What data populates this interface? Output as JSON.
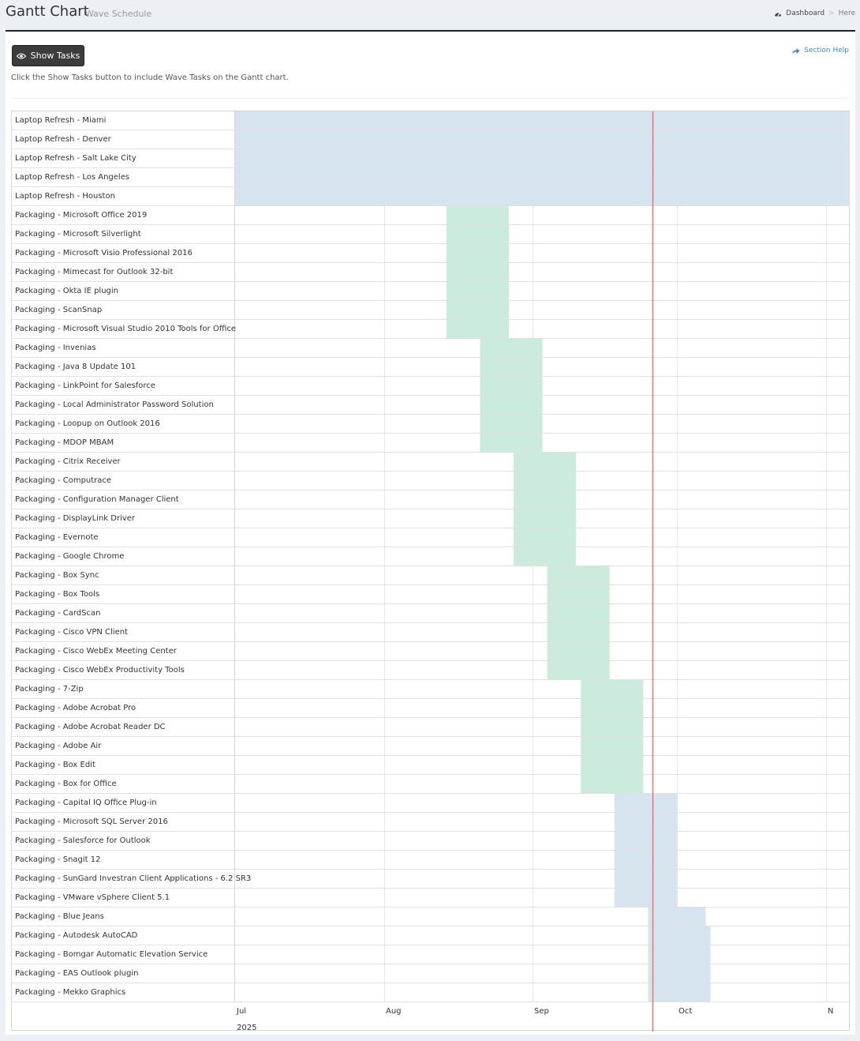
{
  "header": {
    "title": "Gantt Chart",
    "subtitle": "Wave Schedule",
    "breadcrumb": {
      "dashboard": "Dashboard",
      "separator": ">",
      "current": "Here"
    }
  },
  "toolbar": {
    "show_tasks_label": "Show Tasks",
    "section_help_label": "Section Help",
    "help_text": "Click the Show Tasks button to include Wave Tasks on the Gantt chart."
  },
  "colors": {
    "laptop_bar": "#d6e4ef",
    "packaging_green": "#cbebdc",
    "packaging_blue": "#d6e4ef",
    "today_line": "#e8675c",
    "grid": "#e6e6e6"
  },
  "icons": {
    "eye": "eye-icon",
    "share": "share-icon",
    "dashboard": "dashboard-icon"
  },
  "chart_data": {
    "type": "gantt",
    "x_axis": {
      "tick_labels": [
        "Jul",
        "Aug",
        "Sep",
        "Oct",
        "N"
      ],
      "tick_dates": [
        "2025-07-01",
        "2025-08-01",
        "2025-09-01",
        "2025-10-01",
        "2025-11-01"
      ],
      "year_label": "2025",
      "range": [
        "2025-07-01",
        "2025-11-06"
      ]
    },
    "today": "2025-09-26",
    "tasks": [
      {
        "name": "Laptop Refresh - Miami",
        "start": "2025-07-01",
        "end": "2025-11-06",
        "color": "laptop_bar"
      },
      {
        "name": "Laptop Refresh - Denver",
        "start": "2025-07-01",
        "end": "2025-11-06",
        "color": "laptop_bar"
      },
      {
        "name": "Laptop Refresh - Salt Lake City",
        "start": "2025-07-01",
        "end": "2025-11-06",
        "color": "laptop_bar"
      },
      {
        "name": "Laptop Refresh - Los Angeles",
        "start": "2025-07-01",
        "end": "2025-11-06",
        "color": "laptop_bar"
      },
      {
        "name": "Laptop Refresh - Houston",
        "start": "2025-07-01",
        "end": "2025-11-06",
        "color": "laptop_bar"
      },
      {
        "name": "Packaging - Microsoft Office 2019",
        "start": "2025-08-14",
        "end": "2025-08-27",
        "color": "packaging_green"
      },
      {
        "name": "Packaging - Microsoft Silverlight",
        "start": "2025-08-14",
        "end": "2025-08-27",
        "color": "packaging_green"
      },
      {
        "name": "Packaging - Microsoft Visio Professional 2016",
        "start": "2025-08-14",
        "end": "2025-08-27",
        "color": "packaging_green"
      },
      {
        "name": "Packaging - Mimecast for Outlook 32-bit",
        "start": "2025-08-14",
        "end": "2025-08-27",
        "color": "packaging_green"
      },
      {
        "name": "Packaging - Okta IE plugin",
        "start": "2025-08-14",
        "end": "2025-08-27",
        "color": "packaging_green"
      },
      {
        "name": "Packaging - ScanSnap",
        "start": "2025-08-14",
        "end": "2025-08-27",
        "color": "packaging_green"
      },
      {
        "name": "Packaging - Microsoft Visual Studio 2010 Tools for Office",
        "start": "2025-08-14",
        "end": "2025-08-27",
        "color": "packaging_green"
      },
      {
        "name": "Packaging - Invenias",
        "start": "2025-08-21",
        "end": "2025-09-03",
        "color": "packaging_green"
      },
      {
        "name": "Packaging - Java 8 Update 101",
        "start": "2025-08-21",
        "end": "2025-09-03",
        "color": "packaging_green"
      },
      {
        "name": "Packaging - LinkPoint for Salesforce",
        "start": "2025-08-21",
        "end": "2025-09-03",
        "color": "packaging_green"
      },
      {
        "name": "Packaging - Local Administrator Password Solution",
        "start": "2025-08-21",
        "end": "2025-09-03",
        "color": "packaging_green"
      },
      {
        "name": "Packaging - Loopup on Outlook 2016",
        "start": "2025-08-21",
        "end": "2025-09-03",
        "color": "packaging_green"
      },
      {
        "name": "Packaging - MDOP MBAM",
        "start": "2025-08-21",
        "end": "2025-09-03",
        "color": "packaging_green"
      },
      {
        "name": "Packaging - Citrix Receiver",
        "start": "2025-08-28",
        "end": "2025-09-10",
        "color": "packaging_green"
      },
      {
        "name": "Packaging - Computrace",
        "start": "2025-08-28",
        "end": "2025-09-10",
        "color": "packaging_green"
      },
      {
        "name": "Packaging - Configuration Manager Client",
        "start": "2025-08-28",
        "end": "2025-09-10",
        "color": "packaging_green"
      },
      {
        "name": "Packaging - DisplayLink Driver",
        "start": "2025-08-28",
        "end": "2025-09-10",
        "color": "packaging_green"
      },
      {
        "name": "Packaging - Evernote",
        "start": "2025-08-28",
        "end": "2025-09-10",
        "color": "packaging_green"
      },
      {
        "name": "Packaging - Google Chrome",
        "start": "2025-08-28",
        "end": "2025-09-10",
        "color": "packaging_green"
      },
      {
        "name": "Packaging - Box Sync",
        "start": "2025-09-04",
        "end": "2025-09-17",
        "color": "packaging_green"
      },
      {
        "name": "Packaging - Box Tools",
        "start": "2025-09-04",
        "end": "2025-09-17",
        "color": "packaging_green"
      },
      {
        "name": "Packaging - CardScan",
        "start": "2025-09-04",
        "end": "2025-09-17",
        "color": "packaging_green"
      },
      {
        "name": "Packaging - Cisco VPN Client",
        "start": "2025-09-04",
        "end": "2025-09-17",
        "color": "packaging_green"
      },
      {
        "name": "Packaging - Cisco WebEx Meeting Center",
        "start": "2025-09-04",
        "end": "2025-09-17",
        "color": "packaging_green"
      },
      {
        "name": "Packaging - Cisco WebEx Productivity Tools",
        "start": "2025-09-04",
        "end": "2025-09-17",
        "color": "packaging_green"
      },
      {
        "name": "Packaging - 7-Zip",
        "start": "2025-09-11",
        "end": "2025-09-24",
        "color": "packaging_green"
      },
      {
        "name": "Packaging - Adobe Acrobat Pro",
        "start": "2025-09-11",
        "end": "2025-09-24",
        "color": "packaging_green"
      },
      {
        "name": "Packaging - Adobe Acrobat Reader DC",
        "start": "2025-09-11",
        "end": "2025-09-24",
        "color": "packaging_green"
      },
      {
        "name": "Packaging - Adobe Air",
        "start": "2025-09-11",
        "end": "2025-09-24",
        "color": "packaging_green"
      },
      {
        "name": "Packaging - Box Edit",
        "start": "2025-09-11",
        "end": "2025-09-24",
        "color": "packaging_green"
      },
      {
        "name": "Packaging - Box for Office",
        "start": "2025-09-11",
        "end": "2025-09-24",
        "color": "packaging_green"
      },
      {
        "name": "Packaging - Capital IQ Office Plug-in",
        "start": "2025-09-18",
        "end": "2025-10-01",
        "color": "packaging_blue"
      },
      {
        "name": "Packaging - Microsoft SQL Server 2016",
        "start": "2025-09-18",
        "end": "2025-10-01",
        "color": "packaging_blue"
      },
      {
        "name": "Packaging - Salesforce for Outlook",
        "start": "2025-09-18",
        "end": "2025-10-01",
        "color": "packaging_blue"
      },
      {
        "name": "Packaging - Snagit 12",
        "start": "2025-09-18",
        "end": "2025-10-01",
        "color": "packaging_blue"
      },
      {
        "name": "Packaging - SunGard Investran Client Applications - 6.2 SR3",
        "start": "2025-09-18",
        "end": "2025-10-01",
        "color": "packaging_blue"
      },
      {
        "name": "Packaging - VMware vSphere Client 5.1",
        "start": "2025-09-18",
        "end": "2025-10-01",
        "color": "packaging_blue"
      },
      {
        "name": "Packaging - Blue Jeans",
        "start": "2025-09-25",
        "end": "2025-10-07",
        "color": "packaging_blue"
      },
      {
        "name": "Packaging - Autodesk AutoCAD",
        "start": "2025-09-25",
        "end": "2025-10-08",
        "color": "packaging_blue"
      },
      {
        "name": "Packaging - Bomgar Automatic Elevation Service",
        "start": "2025-09-25",
        "end": "2025-10-08",
        "color": "packaging_blue"
      },
      {
        "name": "Packaging - EAS Outlook plugin",
        "start": "2025-09-25",
        "end": "2025-10-08",
        "color": "packaging_blue"
      },
      {
        "name": "Packaging - Mekko Graphics",
        "start": "2025-09-25",
        "end": "2025-10-08",
        "color": "packaging_blue"
      }
    ]
  }
}
